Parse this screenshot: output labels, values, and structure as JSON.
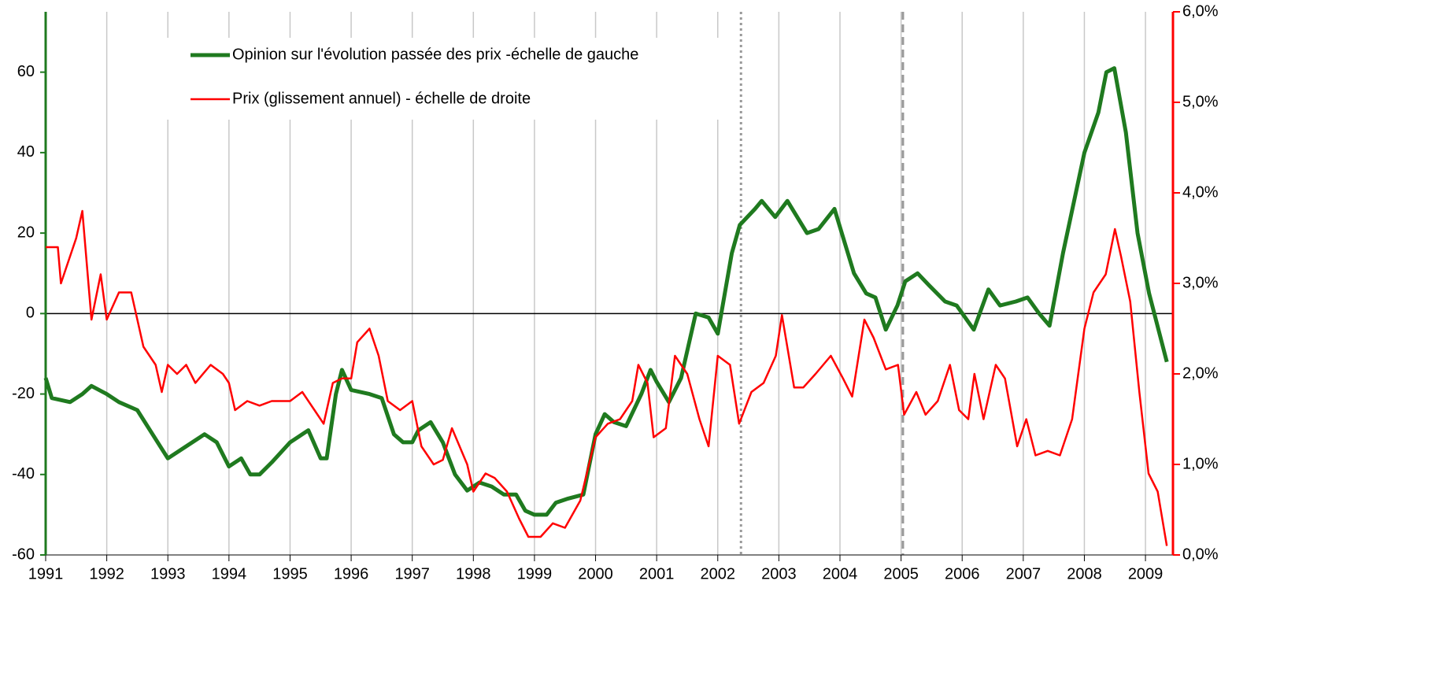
{
  "chart_data": {
    "type": "line",
    "xlim": [
      1991,
      2009.45
    ],
    "xticks": [
      1991,
      1992,
      1993,
      1994,
      1995,
      1996,
      1997,
      1998,
      1999,
      2000,
      2001,
      2002,
      2003,
      2004,
      2005,
      2006,
      2007,
      2008,
      2009
    ],
    "ylim": [
      -60,
      75
    ],
    "yticks": [
      -60,
      -40,
      -20,
      0,
      20,
      40,
      60
    ],
    "y2lim": [
      0,
      6
    ],
    "y2ticks": [
      {
        "value": 0,
        "label": "0,0%"
      },
      {
        "value": 1,
        "label": "1,0%"
      },
      {
        "value": 2,
        "label": "2,0%"
      },
      {
        "value": 3,
        "label": "3,0%"
      },
      {
        "value": 4,
        "label": "4,0%"
      },
      {
        "value": 5,
        "label": "5,0%"
      },
      {
        "value": 6,
        "label": "6,0%"
      }
    ],
    "grid": true,
    "legend": "top-left",
    "vlines": [
      {
        "x": 2002.38,
        "style": "dotted",
        "color": "#999999"
      },
      {
        "x": 2005.03,
        "style": "dashed",
        "color": "#999999"
      }
    ],
    "series": [
      {
        "name": "Opinion sur l'évolution passée des prix -échelle de gauche",
        "color": "#1f7a1f",
        "axis": "y",
        "x": [
          1991.0,
          1991.1,
          1991.4,
          1991.6,
          1991.75,
          1992.0,
          1992.2,
          1992.5,
          1992.75,
          1993.0,
          1993.3,
          1993.6,
          1993.8,
          1994.0,
          1994.2,
          1994.35,
          1994.5,
          1994.7,
          1995.0,
          1995.3,
          1995.5,
          1995.6,
          1995.75,
          1995.85,
          1996.0,
          1996.3,
          1996.5,
          1996.7,
          1996.85,
          1997.0,
          1997.1,
          1997.3,
          1997.5,
          1997.7,
          1997.9,
          1998.1,
          1998.3,
          1998.5,
          1998.7,
          1998.85,
          1999.0,
          1999.2,
          1999.35,
          1999.55,
          1999.8,
          2000.0,
          2000.15,
          2000.3,
          2000.5,
          2000.75,
          2000.9,
          2001.0,
          2001.2,
          2001.4,
          2001.64,
          2001.85,
          2002.0,
          2002.23,
          2002.36,
          2002.61,
          2002.72,
          2002.94,
          2003.14,
          2003.46,
          2003.65,
          2003.91,
          2004.23,
          2004.43,
          2004.58,
          2004.75,
          2004.94,
          2005.07,
          2005.27,
          2005.46,
          2005.72,
          2005.91,
          2006.19,
          2006.43,
          2006.62,
          2006.88,
          2007.07,
          2007.26,
          2007.43,
          2007.65,
          2008.0,
          2008.23,
          2008.36,
          2008.49,
          2008.68,
          2008.87,
          2009.06,
          2009.35
        ],
        "values": [
          -16,
          -21,
          -22,
          -20,
          -18,
          -20,
          -22,
          -24,
          -30,
          -36,
          -33,
          -30,
          -32,
          -38,
          -36,
          -40,
          -40,
          -37,
          -32,
          -29,
          -36,
          -36,
          -20,
          -14,
          -19,
          -20,
          -21,
          -30,
          -32,
          -32,
          -29,
          -27,
          -32,
          -40,
          -44,
          -42,
          -43,
          -45,
          -45,
          -49,
          -50,
          -50,
          -47,
          -46,
          -45,
          -30,
          -25,
          -27,
          -28,
          -20,
          -14,
          -17,
          -22,
          -16,
          0,
          -1,
          -5,
          15,
          22,
          26,
          28,
          24,
          28,
          20,
          21,
          26,
          10,
          5,
          4,
          -4,
          2,
          8,
          10,
          7,
          3,
          2,
          -4,
          6,
          2,
          3,
          4,
          0,
          -3,
          15,
          40,
          50,
          60,
          61,
          45,
          20,
          5,
          -12
        ]
      },
      {
        "name": "Prix (glissement annuel) - échelle de droite",
        "color": "#ff0000",
        "axis": "y2",
        "x": [
          1991.0,
          1991.2,
          1991.25,
          1991.5,
          1991.6,
          1991.75,
          1991.9,
          1992.0,
          1992.2,
          1992.4,
          1992.6,
          1992.8,
          1992.9,
          1993.0,
          1993.15,
          1993.3,
          1993.45,
          1993.7,
          1993.9,
          1994.0,
          1994.1,
          1994.3,
          1994.5,
          1994.7,
          1995.0,
          1995.2,
          1995.4,
          1995.55,
          1995.7,
          1995.85,
          1996.0,
          1996.1,
          1996.3,
          1996.45,
          1996.6,
          1996.8,
          1997.0,
          1997.15,
          1997.35,
          1997.5,
          1997.65,
          1997.9,
          1998.0,
          1998.2,
          1998.35,
          1998.55,
          1998.75,
          1998.9,
          1999.1,
          1999.3,
          1999.5,
          1999.75,
          2000.0,
          2000.2,
          2000.4,
          2000.6,
          2000.7,
          2000.85,
          2000.95,
          2001.15,
          2001.3,
          2001.5,
          2001.7,
          2001.85,
          2002.0,
          2002.2,
          2002.35,
          2002.55,
          2002.75,
          2002.95,
          2003.05,
          2003.25,
          2003.4,
          2003.6,
          2003.85,
          2004.05,
          2004.2,
          2004.4,
          2004.55,
          2004.75,
          2004.95,
          2005.05,
          2005.25,
          2005.4,
          2005.6,
          2005.8,
          2005.95,
          2006.1,
          2006.2,
          2006.35,
          2006.55,
          2006.7,
          2006.9,
          2007.05,
          2007.2,
          2007.4,
          2007.6,
          2007.8,
          2008.0,
          2008.15,
          2008.35,
          2008.5,
          2008.6,
          2008.75,
          2008.9,
          2009.05,
          2009.2,
          2009.35
        ],
        "values": [
          3.4,
          3.4,
          3.0,
          3.5,
          3.8,
          2.6,
          3.1,
          2.6,
          2.9,
          2.9,
          2.3,
          2.1,
          1.8,
          2.1,
          2.0,
          2.1,
          1.9,
          2.1,
          2.0,
          1.9,
          1.6,
          1.7,
          1.65,
          1.7,
          1.7,
          1.8,
          1.6,
          1.45,
          1.9,
          1.95,
          1.95,
          2.35,
          2.5,
          2.2,
          1.7,
          1.6,
          1.7,
          1.2,
          1.0,
          1.05,
          1.4,
          1.0,
          0.7,
          0.9,
          0.85,
          0.7,
          0.4,
          0.2,
          0.2,
          0.35,
          0.3,
          0.6,
          1.3,
          1.45,
          1.5,
          1.7,
          2.1,
          1.9,
          1.3,
          1.4,
          2.2,
          2.0,
          1.5,
          1.2,
          2.2,
          2.1,
          1.45,
          1.8,
          1.9,
          2.2,
          2.65,
          1.85,
          1.85,
          2.0,
          2.2,
          1.95,
          1.75,
          2.6,
          2.4,
          2.05,
          2.1,
          1.55,
          1.8,
          1.55,
          1.7,
          2.1,
          1.6,
          1.5,
          2.0,
          1.5,
          2.1,
          1.95,
          1.2,
          1.5,
          1.1,
          1.15,
          1.1,
          1.5,
          2.5,
          2.9,
          3.1,
          3.6,
          3.3,
          2.8,
          1.8,
          0.9,
          0.7,
          0.1
        ]
      }
    ]
  }
}
